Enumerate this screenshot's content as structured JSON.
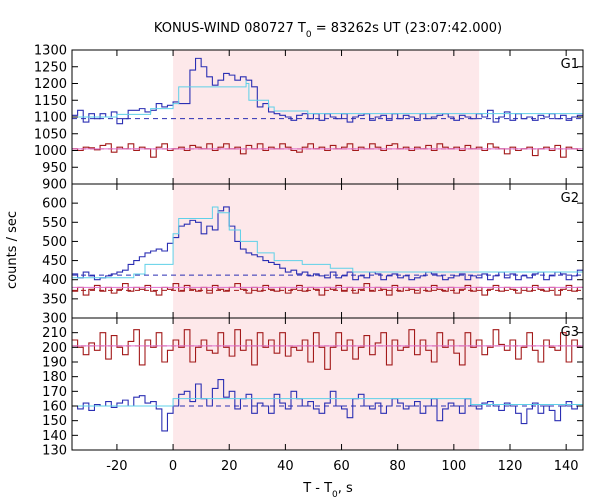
{
  "chart_data": {
    "type": "line",
    "title": {
      "prefix": "KONUS-WIND 080727 T",
      "subscript": "0",
      "suffix": " = 83262s UT (23:07:42.000)"
    },
    "ylabel": "counts / sec",
    "xlabel": {
      "prefix": "T - T",
      "subscript": "0",
      "suffix": ", s"
    },
    "xlim": [
      -36,
      146
    ],
    "x_ticks": [
      -20,
      0,
      20,
      40,
      60,
      80,
      100,
      120,
      140
    ],
    "highlight": {
      "x0": 0,
      "x1": 109,
      "color": "#fde8ea"
    },
    "colors": {
      "series_blue": "#2b2fb3",
      "series_red": "#a31a1a",
      "fit_cyan": "#5fd0e8",
      "fit_pink": "#e070d0",
      "frame": "#000000"
    },
    "panels": [
      {
        "label": "G1",
        "ylim": [
          900,
          1300
        ],
        "y_ticks": [
          900,
          950,
          1000,
          1050,
          1100,
          1150,
          1200,
          1250,
          1300
        ],
        "series": [
          {
            "name": "G1 counts (rising bin)",
            "color_key": "series_blue",
            "x0": -36,
            "dx": 2,
            "values": [
              1105,
              1120,
              1085,
              1110,
              1095,
              1110,
              1100,
              1115,
              1080,
              1095,
              1120,
              1120,
              1125,
              1115,
              1120,
              1140,
              1130,
              1135,
              1145,
              1140,
              1140,
              1240,
              1275,
              1250,
              1220,
              1195,
              1210,
              1230,
              1225,
              1210,
              1220,
              1210,
              1190,
              1130,
              1140,
              1115,
              1110,
              1105,
              1100,
              1090,
              1105,
              1110,
              1095,
              1110,
              1090,
              1110,
              1100,
              1095,
              1110,
              1085,
              1100,
              1105,
              1110,
              1090,
              1100,
              1105,
              1090,
              1110,
              1095,
              1105,
              1100,
              1090,
              1110,
              1095,
              1100,
              1105,
              1110,
              1100,
              1090,
              1105,
              1100,
              1095,
              1110,
              1100,
              1120,
              1085,
              1100,
              1115,
              1090,
              1110,
              1095,
              1100,
              1090,
              1105,
              1100,
              1110,
              1095,
              1105,
              1090,
              1100,
              1105
            ]
          },
          {
            "name": "G1 counts (falling bin)",
            "color_key": "series_red",
            "x0": -36,
            "dx": 2,
            "values": [
              1005,
              1000,
              1010,
              1008,
              1002,
              1015,
              1020,
              995,
              1010,
              1005,
              1020,
              1000,
              1010,
              1005,
              980,
              1010,
              1020,
              1000,
              1005,
              1010,
              1000,
              1015,
              1010,
              1005,
              1020,
              1000,
              1010,
              1020,
              1005,
              1010,
              990,
              1015,
              1005,
              1020,
              1000,
              1010,
              1005,
              1020,
              1010,
              1000,
              995,
              1010,
              1020,
              1005,
              1010,
              1000,
              1015,
              1005,
              1010,
              1020,
              1000,
              1010,
              1005,
              1020,
              1010,
              1000,
              1015,
              1020,
              1005,
              1010,
              1000,
              1010,
              1005,
              1015,
              1000,
              1020,
              1010,
              1005,
              1010,
              1000,
              1015,
              1005,
              1010,
              1000,
              1020,
              1010,
              1005,
              990,
              1010,
              1000,
              1005,
              1010,
              985,
              1005,
              1010,
              1000,
              1015,
              980,
              1010,
              1005,
              1000
            ]
          }
        ],
        "fits": [
          {
            "color_key": "fit_cyan",
            "steps": [
              [
                -36,
                1100
              ],
              [
                -20,
                1108
              ],
              [
                -8,
                1125
              ],
              [
                0,
                1140
              ],
              [
                2,
                1190
              ],
              [
                26,
                1210
              ],
              [
                26,
                1200
              ],
              [
                27,
                1150
              ],
              [
                34,
                1130
              ],
              [
                36,
                1118
              ],
              [
                48,
                1110
              ],
              [
                146,
                1100
              ]
            ]
          },
          {
            "color_key": "fit_pink",
            "steps": [
              [
                -36,
                1005
              ],
              [
                146,
                1005
              ]
            ]
          }
        ],
        "bg_lines": [
          {
            "color_key": "series_blue",
            "y": 1095,
            "dashed": true
          },
          {
            "color_key": "series_red",
            "y": 1005,
            "dashed": true
          }
        ]
      },
      {
        "label": "G2",
        "ylim": [
          300,
          650
        ],
        "y_ticks": [
          300,
          350,
          400,
          450,
          500,
          550,
          600
        ],
        "series": [
          {
            "name": "G2 counts (rising bin)",
            "color_key": "series_blue",
            "x0": -36,
            "dx": 2,
            "values": [
              415,
              405,
              420,
              410,
              400,
              405,
              410,
              415,
              420,
              425,
              440,
              450,
              460,
              470,
              475,
              480,
              475,
              495,
              510,
              540,
              545,
              555,
              550,
              520,
              540,
              530,
              580,
              590,
              540,
              500,
              480,
              470,
              465,
              460,
              450,
              445,
              440,
              430,
              420,
              425,
              415,
              420,
              410,
              415,
              410,
              405,
              420,
              405,
              410,
              420,
              400,
              410,
              405,
              420,
              415,
              400,
              410,
              415,
              405,
              410,
              400,
              405,
              410,
              420,
              415,
              410,
              400,
              405,
              410,
              415,
              400,
              410,
              405,
              415,
              400,
              410,
              420,
              405,
              415,
              400,
              410,
              405,
              415,
              420,
              400,
              410,
              420,
              415,
              400,
              410,
              425
            ]
          },
          {
            "name": "G2 counts (falling bin)",
            "color_key": "series_red",
            "x0": -36,
            "dx": 2,
            "values": [
              370,
              380,
              360,
              375,
              385,
              370,
              380,
              365,
              375,
              390,
              370,
              380,
              375,
              385,
              370,
              360,
              380,
              375,
              390,
              370,
              385,
              375,
              370,
              380,
              365,
              385,
              375,
              370,
              380,
              390,
              375,
              365,
              380,
              370,
              385,
              375,
              370,
              380,
              365,
              375,
              385,
              370,
              380,
              375,
              360,
              380,
              375,
              385,
              370,
              380,
              365,
              375,
              390,
              370,
              380,
              375,
              360,
              385,
              370,
              380,
              375,
              365,
              380,
              370,
              385,
              375,
              370,
              380,
              365,
              375,
              385,
              370,
              380,
              360,
              375,
              385,
              370,
              380,
              375,
              365,
              380,
              370,
              385,
              375,
              370,
              380,
              360,
              375,
              385,
              370,
              380
            ]
          }
        ],
        "fits": [
          {
            "color_key": "fit_cyan",
            "steps": [
              [
                -36,
                405
              ],
              [
                -14,
                415
              ],
              [
                -10,
                440
              ],
              [
                0,
                470
              ],
              [
                0,
                520
              ],
              [
                2,
                560
              ],
              [
                12,
                560
              ],
              [
                14,
                590
              ],
              [
                16,
                575
              ],
              [
                20,
                530
              ],
              [
                24,
                500
              ],
              [
                30,
                470
              ],
              [
                36,
                450
              ],
              [
                46,
                440
              ],
              [
                56,
                430
              ],
              [
                64,
                420
              ],
              [
                146,
                410
              ]
            ]
          },
          {
            "color_key": "fit_pink",
            "steps": [
              [
                -36,
                380
              ],
              [
                146,
                372
              ]
            ]
          }
        ],
        "bg_lines": [
          {
            "color_key": "series_blue",
            "y": 412,
            "dashed": true
          },
          {
            "color_key": "series_red",
            "y": 372,
            "dashed": true
          }
        ]
      },
      {
        "label": "G3",
        "ylim": [
          130,
          220
        ],
        "y_ticks": [
          130,
          140,
          150,
          160,
          170,
          180,
          190,
          200,
          210
        ],
        "series": [
          {
            "name": "G3 counts (rising bin)",
            "color_key": "series_blue",
            "x0": -36,
            "dx": 2,
            "values": [
              160,
              158,
              162,
              157,
              161,
              160,
              163,
              159,
              162,
              164,
              160,
              166,
              167,
              162,
              163,
              158,
              143,
              155,
              160,
              168,
              170,
              163,
              175,
              165,
              160,
              172,
              178,
              166,
              170,
              158,
              165,
              168,
              155,
              162,
              160,
              155,
              168,
              162,
              158,
              170,
              165,
              160,
              163,
              158,
              155,
              162,
              170,
              160,
              158,
              152,
              165,
              168,
              160,
              158,
              162,
              155,
              160,
              165,
              162,
              158,
              160,
              163,
              155,
              160,
              165,
              150,
              158,
              162,
              160,
              155,
              165,
              160,
              158,
              162,
              163,
              160,
              157,
              162,
              160,
              155,
              148,
              158,
              162,
              155,
              160,
              157,
              150,
              160,
              163,
              158,
              160
            ]
          },
          {
            "name": "G3 counts (falling bin)",
            "color_key": "series_red",
            "x0": -36,
            "dx": 2,
            "values": [
              205,
              200,
              195,
              203,
              198,
              210,
              192,
              208,
              200,
              195,
              204,
              212,
              188,
              205,
              200,
              210,
              190,
              198,
              205,
              200,
              212,
              190,
              200,
              205,
              198,
              196,
              210,
              200,
              194,
              212,
              198,
              205,
              188,
              210,
              200,
              205,
              196,
              210,
              194,
              200,
              198,
              205,
              190,
              210,
              200,
              185,
              200,
              210,
              198,
              205,
              192,
              200,
              208,
              195,
              203,
              210,
              188,
              205,
              198,
              200,
              212,
              195,
              205,
              198,
              190,
              210,
              200,
              205,
              196,
              188,
              210,
              200,
              205,
              195,
              200,
              212,
              202,
              198,
              205,
              192,
              200,
              210,
              198,
              190,
              205,
              200,
              198,
              210,
              190,
              205,
              200
            ]
          }
        ],
        "fits": [
          {
            "color_key": "fit_cyan",
            "steps": [
              [
                -36,
                160
              ],
              [
                0,
                160
              ],
              [
                0,
                165
              ],
              [
                106,
                165
              ],
              [
                106,
                161
              ],
              [
                146,
                161
              ]
            ]
          },
          {
            "color_key": "fit_pink",
            "steps": [
              [
                -36,
                201
              ],
              [
                146,
                201
              ]
            ]
          }
        ],
        "bg_lines": [
          {
            "color_key": "series_blue",
            "y": 160,
            "dashed": true
          },
          {
            "color_key": "series_red",
            "y": 201,
            "dashed": true
          }
        ]
      }
    ]
  }
}
